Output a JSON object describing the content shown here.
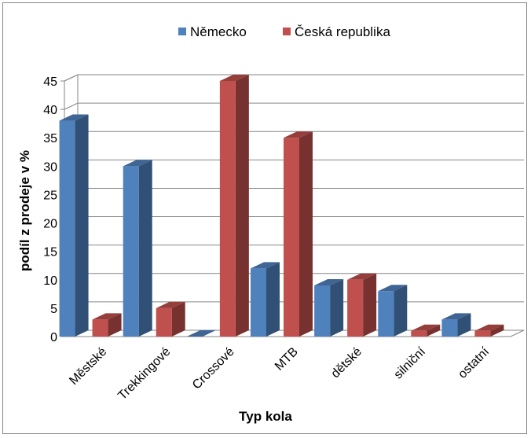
{
  "chart_data": {
    "type": "bar",
    "categories": [
      "Městské",
      "Trekkingové",
      "Crossové",
      "MTB",
      "dětské",
      "silniční",
      "ostatní"
    ],
    "series": [
      {
        "name": "Německo",
        "values": [
          38,
          30,
          0,
          12,
          9,
          8,
          3
        ],
        "color": "#4F81BD"
      },
      {
        "name": "Česká republika",
        "values": [
          3,
          5,
          45,
          35,
          10,
          1,
          1
        ],
        "color": "#C0504D"
      }
    ],
    "xlabel": "Typ kola",
    "ylabel": "podíl z prodeje v %",
    "ylim": [
      0,
      45
    ],
    "yticks": [
      0,
      5,
      10,
      15,
      20,
      25,
      30,
      35,
      40,
      45
    ],
    "grid": true,
    "legend_position": "top",
    "style": "3d-clustered-column"
  }
}
